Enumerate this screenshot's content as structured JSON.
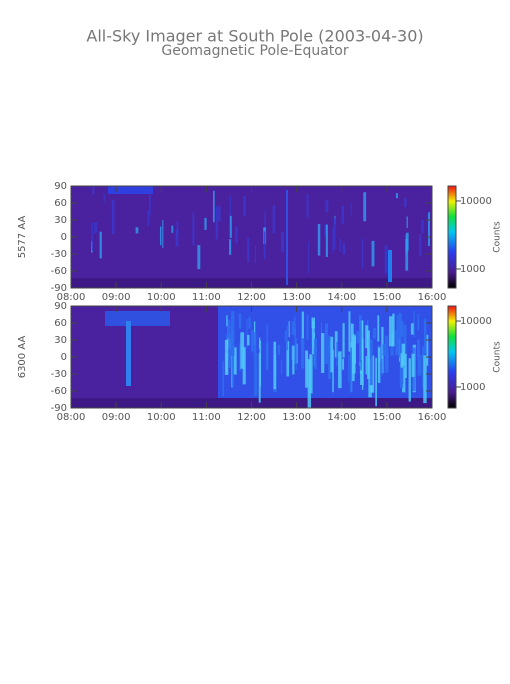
{
  "chart_data": [
    {
      "type": "heatmap",
      "title": "All-Sky Imager at South Pole (2003-04-30)",
      "subtitle": "Geomagnetic Pole-Equator",
      "ylabel": "5577 AA",
      "ylim": [
        -90,
        90
      ],
      "yticks": [
        -90,
        -60,
        -30,
        0,
        30,
        60,
        90
      ],
      "xlim": [
        8,
        16
      ],
      "xticks": [
        {
          "value": 8,
          "label": "08:00"
        },
        {
          "value": 9,
          "label": "09:00"
        },
        {
          "value": 10,
          "label": "10:00"
        },
        {
          "value": 11,
          "label": "11:00"
        },
        {
          "value": 12,
          "label": "12:00"
        },
        {
          "value": 13,
          "label": "13:00"
        },
        {
          "value": 14,
          "label": "14:00"
        },
        {
          "value": 15,
          "label": "15:00"
        },
        {
          "value": 16,
          "label": "16:00"
        }
      ],
      "colorbar": {
        "label": "Counts",
        "log": true,
        "clim": [
          525,
          16600
        ],
        "ticks": [
          1000,
          10000
        ]
      }
    },
    {
      "type": "heatmap",
      "ylabel": "6300 AA",
      "ylim": [
        -90,
        90
      ],
      "yticks": [
        -90,
        -60,
        -30,
        0,
        30,
        60,
        90
      ],
      "xlim": [
        8,
        16
      ],
      "xticks": [
        {
          "value": 8,
          "label": "08:00"
        },
        {
          "value": 9,
          "label": "09:00"
        },
        {
          "value": 10,
          "label": "10:00"
        },
        {
          "value": 11,
          "label": "11:00"
        },
        {
          "value": 12,
          "label": "12:00"
        },
        {
          "value": 13,
          "label": "13:00"
        },
        {
          "value": 14,
          "label": "14:00"
        },
        {
          "value": 15,
          "label": "15:00"
        },
        {
          "value": 16,
          "label": "16:00"
        }
      ],
      "colorbar": {
        "label": "Counts",
        "log": true,
        "clim": [
          480,
          16900
        ],
        "ticks": [
          1000,
          10000
        ]
      }
    }
  ]
}
